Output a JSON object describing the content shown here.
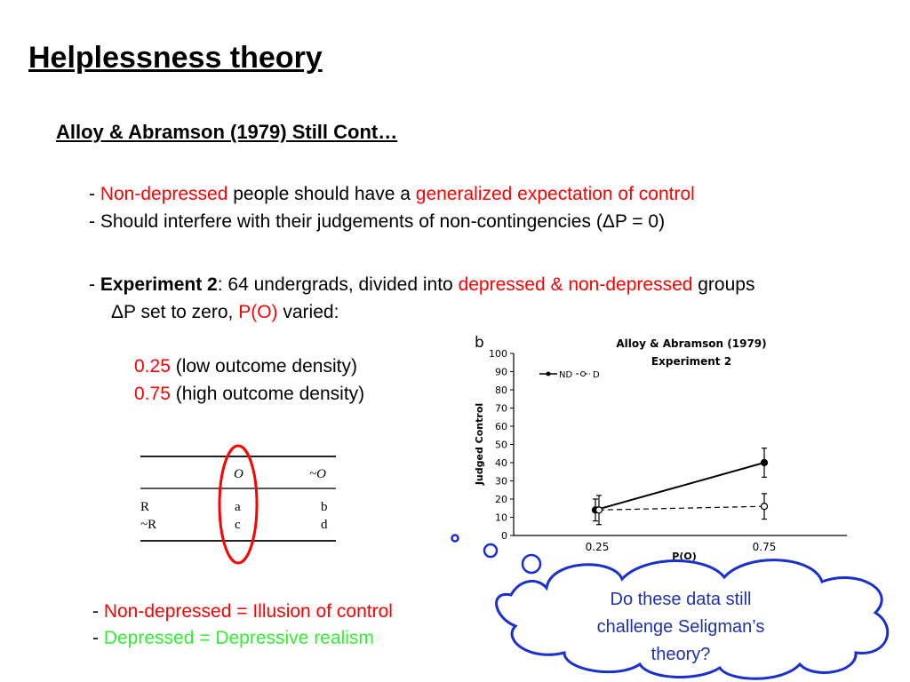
{
  "title": "Helplessness theory",
  "subtitle": "Alloy & Abramson (1979) Still Cont…",
  "bullets": {
    "b1_dash": "- ",
    "b1_red1": "Non-depressed",
    "b1_mid": " people should have a ",
    "b1_red2": "generalized expectation of control",
    "b2": "- Should interfere with  their judgements of non-contingencies (ΔP  = 0)",
    "b3_dash": "- ",
    "b3_bold": "Experiment 2",
    "b3_mid": ": 64 undergrads, divided into ",
    "b3_red": "depressed & non-depressed",
    "b3_end": " groups",
    "b4_start": "ΔP set to zero, ",
    "b4_red": "P(O)",
    "b4_end": " varied:",
    "v1_red": "0.25",
    "v1_text": " (low outcome density)",
    "v2_red": "0.75",
    "v2_text": " (high outcome density)"
  },
  "contingency_table": {
    "col_headers": [
      "O",
      "~O"
    ],
    "rows": [
      {
        "label": "R",
        "cells": [
          "a",
          "b"
        ]
      },
      {
        "label": "~R",
        "cells": [
          "c",
          "d"
        ]
      }
    ]
  },
  "conclusions": {
    "c1_dash": "- ",
    "c1_red": "Non-depressed  = Illusion of control",
    "c2_dash": "- ",
    "c2_green": "Depressed = Depressive realism"
  },
  "thought_bubble": {
    "text_line1": "Do these data still",
    "text_line2": "challenge Seligman’s",
    "text_line3": "theory?"
  },
  "colors": {
    "highlight": "#ff0000",
    "positive": "#33ee33",
    "bubble_text": "#1f30b0",
    "bubble_stroke": "#1a2fd0"
  },
  "chart_data": {
    "type": "line",
    "panel_label": "b",
    "title": "Alloy & Abramson (1979)",
    "subtitle": "Experiment 2",
    "xlabel": "P(O)",
    "ylabel": "Judged Control",
    "categories": [
      "0.25",
      "0.75"
    ],
    "ylim": [
      0,
      100
    ],
    "yticks": [
      0,
      10,
      20,
      30,
      40,
      50,
      60,
      70,
      80,
      90,
      100
    ],
    "legend_position": "top-left",
    "series": [
      {
        "name": "ND",
        "values": [
          14,
          40
        ],
        "errors": [
          6,
          8
        ],
        "marker": "filled",
        "line": "solid"
      },
      {
        "name": "D",
        "values": [
          14,
          16
        ],
        "errors": [
          8,
          7
        ],
        "marker": "open",
        "line": "dashed"
      }
    ]
  }
}
